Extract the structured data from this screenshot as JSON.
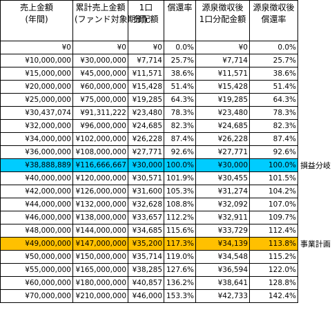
{
  "table": {
    "header": [
      [
        "売上金額",
        "(年間)"
      ],
      [
        "累計売上金額",
        "(ファンド対象期間)"
      ],
      [
        "1口",
        "分配額"
      ],
      [
        "償還率"
      ],
      [
        "源泉徴収後",
        "1口分配金額"
      ],
      [
        "源泉徴収後",
        "償還率"
      ]
    ],
    "rows": [
      {
        "cells": [
          "¥0",
          "¥0",
          "¥0",
          "0.0%",
          "¥0",
          "0.0%"
        ]
      },
      {
        "cells": [
          "¥10,000,000",
          "¥30,000,000",
          "¥7,714",
          "25.7%",
          "¥7,714",
          "25.7%"
        ]
      },
      {
        "cells": [
          "¥15,000,000",
          "¥45,000,000",
          "¥11,571",
          "38.6%",
          "¥11,571",
          "38.6%"
        ]
      },
      {
        "cells": [
          "¥20,000,000",
          "¥60,000,000",
          "¥15,428",
          "51.4%",
          "¥15,428",
          "51.4%"
        ]
      },
      {
        "cells": [
          "¥25,000,000",
          "¥75,000,000",
          "¥19,285",
          "64.3%",
          "¥19,285",
          "64.3%"
        ]
      },
      {
        "cells": [
          "¥30,437,074",
          "¥91,311,222",
          "¥23,480",
          "78.3%",
          "¥23,480",
          "78.3%"
        ]
      },
      {
        "cells": [
          "¥32,000,000",
          "¥96,000,000",
          "¥24,685",
          "82.3%",
          "¥24,685",
          "82.3%"
        ]
      },
      {
        "cells": [
          "¥34,000,000",
          "¥102,000,000",
          "¥26,228",
          "87.4%",
          "¥26,228",
          "87.4%"
        ]
      },
      {
        "cells": [
          "¥36,000,000",
          "¥108,000,000",
          "¥27,771",
          "92.6%",
          "¥27,771",
          "92.6%"
        ]
      },
      {
        "cells": [
          "¥38,888,889",
          "¥116,666,667",
          "¥30,000",
          "100.0%",
          "¥30,000",
          "100.0%"
        ],
        "note": "損益分岐",
        "fill": "#00ccff"
      },
      {
        "cells": [
          "¥40,000,000",
          "¥120,000,000",
          "¥30,571",
          "101.9%",
          "¥30,455",
          "101.5%"
        ]
      },
      {
        "cells": [
          "¥42,000,000",
          "¥126,000,000",
          "¥31,600",
          "105.3%",
          "¥31,274",
          "104.2%"
        ]
      },
      {
        "cells": [
          "¥44,000,000",
          "¥132,000,000",
          "¥32,628",
          "108.8%",
          "¥32,092",
          "107.0%"
        ]
      },
      {
        "cells": [
          "¥46,000,000",
          "¥138,000,000",
          "¥33,657",
          "112.2%",
          "¥32,911",
          "109.7%"
        ]
      },
      {
        "cells": [
          "¥48,000,000",
          "¥144,000,000",
          "¥34,685",
          "115.6%",
          "¥33,729",
          "112.4%"
        ]
      },
      {
        "cells": [
          "¥49,000,000",
          "¥147,000,000",
          "¥35,200",
          "117.3%",
          "¥34,139",
          "113.8%"
        ],
        "note": "事業計画",
        "fill": "#ffc000"
      },
      {
        "cells": [
          "¥50,000,000",
          "¥150,000,000",
          "¥35,714",
          "119.0%",
          "¥34,548",
          "115.2%"
        ]
      },
      {
        "cells": [
          "¥55,000,000",
          "¥165,000,000",
          "¥38,285",
          "127.6%",
          "¥36,594",
          "122.0%"
        ]
      },
      {
        "cells": [
          "¥60,000,000",
          "¥180,000,000",
          "¥40,857",
          "136.2%",
          "¥38,641",
          "128.8%"
        ]
      },
      {
        "cells": [
          "¥70,000,000",
          "¥210,000,000",
          "¥46,000",
          "153.3%",
          "¥42,733",
          "142.4%"
        ]
      }
    ]
  }
}
